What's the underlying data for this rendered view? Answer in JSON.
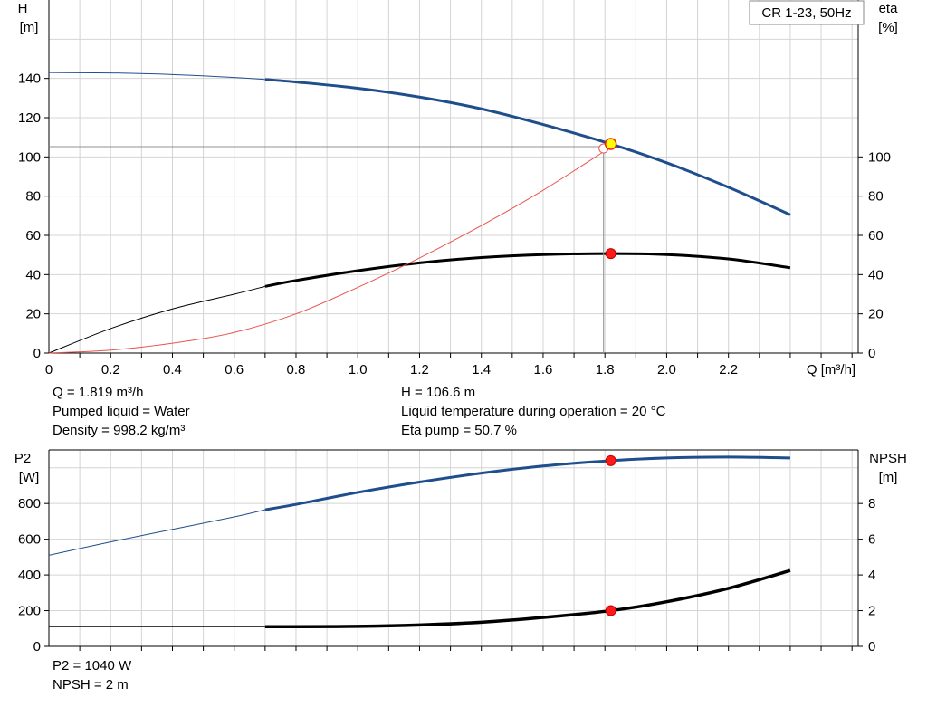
{
  "chart_data": [
    {
      "type": "line",
      "title": "CR 1-23, 50Hz",
      "xlabel": "Q [m³/h]",
      "ylabel": "H\n[m]",
      "ylabel_right": "eta\n[%]",
      "xlim": [
        0,
        2.62
      ],
      "ylim": [
        0,
        180
      ],
      "ylim_right": [
        0,
        180
      ],
      "x_ticks": [
        "0",
        "0.2",
        "0.4",
        "0.6",
        "0.8",
        "1.0",
        "1.2",
        "1.4",
        "1.6",
        "1.8",
        "2.0",
        "2.2"
      ],
      "y_ticks": [
        "0",
        "20",
        "40",
        "60",
        "80",
        "100",
        "120",
        "140"
      ],
      "y_ticks_right": [
        "0",
        "20",
        "40",
        "60",
        "80",
        "100"
      ],
      "grid": true,
      "legend": "top-right",
      "series": [
        {
          "name": "H",
          "color": "#1f4e8c",
          "x": [
            0,
            0.2,
            0.4,
            0.6,
            0.7,
            0.8,
            1.0,
            1.2,
            1.4,
            1.6,
            1.819,
            2.0,
            2.2,
            2.4
          ],
          "y": [
            143,
            142.8,
            142,
            140.5,
            139.5,
            138.2,
            135,
            130.5,
            124.5,
            116.5,
            106.6,
            97,
            84.5,
            70.5
          ],
          "thick_from_x": 0.7
        },
        {
          "name": "Eta",
          "color": "#000000",
          "x": [
            0,
            0.2,
            0.4,
            0.6,
            0.7,
            0.8,
            1.0,
            1.2,
            1.4,
            1.6,
            1.819,
            2.0,
            2.2,
            2.4
          ],
          "y": [
            0,
            12.5,
            22.5,
            30,
            34,
            37,
            42,
            46,
            48.7,
            50.2,
            50.7,
            50.2,
            48,
            43.5
          ],
          "thick_from_x": 0.7
        },
        {
          "name": "Eta reference",
          "color": "#e8554f",
          "x": [
            0,
            0.2,
            0.4,
            0.6,
            0.8,
            1.0,
            1.2,
            1.4,
            1.6,
            1.819
          ],
          "y": [
            0,
            1.5,
            5,
            10.5,
            20,
            33.5,
            48.5,
            65,
            83,
            105
          ]
        }
      ],
      "duty_point": {
        "x": 1.819,
        "h": 106.6,
        "eta": 50.7
      }
    },
    {
      "type": "line",
      "xlabel": "",
      "ylabel": "P2\n[W]",
      "ylabel_right": "NPSH\n[m]",
      "xlim": [
        0,
        2.62
      ],
      "ylim": [
        0,
        1100
      ],
      "ylim_right": [
        0,
        11
      ],
      "y_ticks": [
        "0",
        "200",
        "400",
        "600",
        "800"
      ],
      "y_ticks_right": [
        "0",
        "2",
        "4",
        "6",
        "8"
      ],
      "grid": true,
      "series": [
        {
          "name": "P2",
          "color": "#1f4e8c",
          "axis": "left",
          "x": [
            0,
            0.2,
            0.4,
            0.6,
            0.7,
            0.8,
            1.0,
            1.2,
            1.4,
            1.6,
            1.819,
            2.0,
            2.2,
            2.4
          ],
          "y": [
            510,
            585,
            655,
            725,
            765,
            795,
            862,
            920,
            970,
            1010,
            1040,
            1055,
            1060,
            1055
          ],
          "thick_from_x": 0.7
        },
        {
          "name": "NPSH",
          "color": "#000000",
          "axis": "right",
          "x": [
            0,
            0.2,
            0.4,
            0.6,
            0.7,
            0.8,
            1.0,
            1.2,
            1.4,
            1.6,
            1.819,
            2.0,
            2.2,
            2.4
          ],
          "y": [
            1.1,
            1.1,
            1.1,
            1.1,
            1.1,
            1.1,
            1.12,
            1.2,
            1.35,
            1.62,
            2.0,
            2.5,
            3.25,
            4.25
          ],
          "thick_from_x": 0.7
        }
      ],
      "duty_point": {
        "x": 1.819,
        "p2": 1040,
        "npsh": 2
      }
    }
  ],
  "info_top": {
    "q": "Q = 1.819 m³/h",
    "liquid": "Pumped liquid = Water",
    "density": "Density = 998.2 kg/m³",
    "h": "H = 106.6 m",
    "temp": "Liquid temperature during operation = 20 °C",
    "eta": "Eta pump = 50.7 %"
  },
  "info_bottom": {
    "p2": "P2 = 1040 W",
    "npsh": "NPSH = 2 m"
  },
  "colors": {
    "curve_blue": "#1f4e8c",
    "curve_black": "#000000",
    "curve_red": "#e8554f",
    "duty_red": "#ff1a1a",
    "duty_yellow": "#ffff00",
    "grid": "#d4d4d4"
  }
}
